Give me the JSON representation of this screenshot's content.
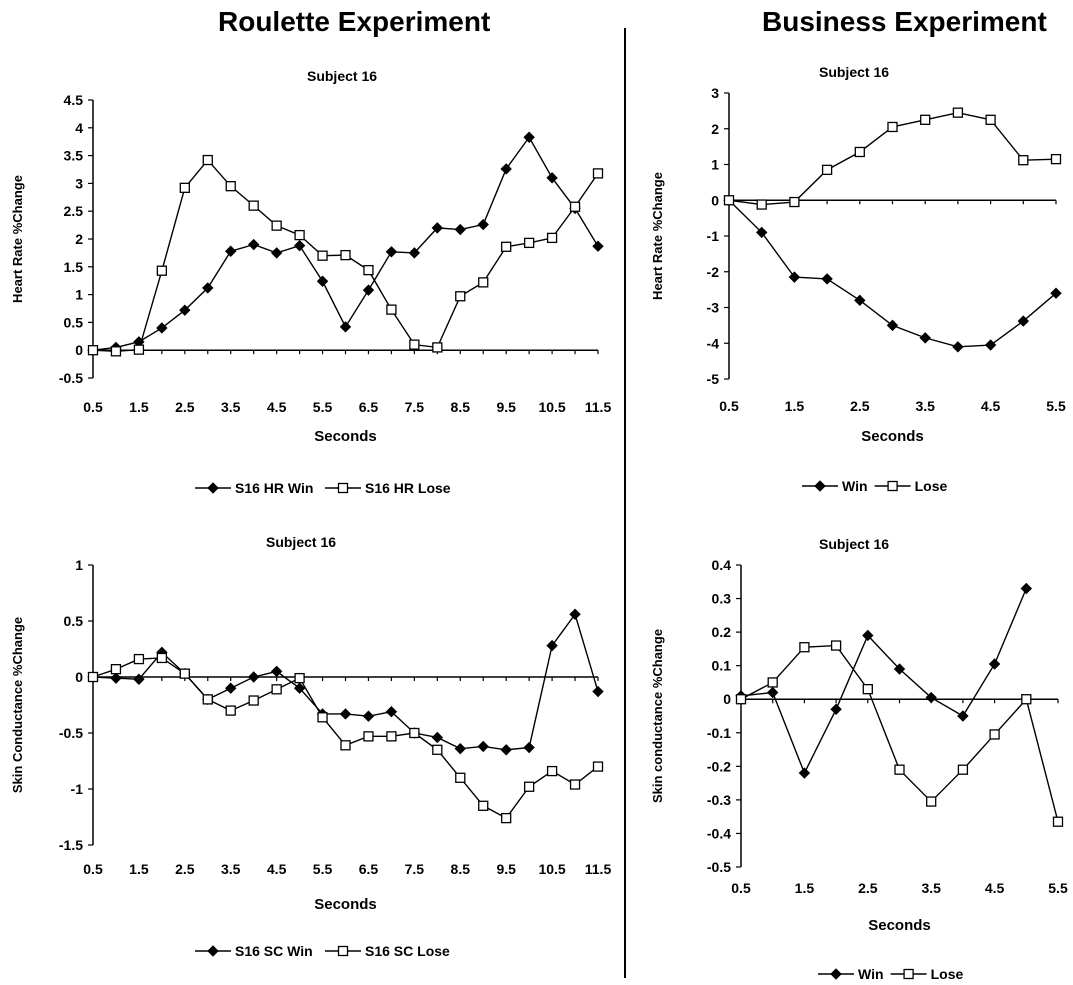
{
  "sections": {
    "left_title": "Roulette Experiment",
    "right_title": "Business Experiment"
  },
  "chart_data": [
    {
      "type": "line",
      "title": "Subject 16",
      "xlabel": "Seconds",
      "ylabel": "Heart Rate %Change",
      "categories": [
        "0.5",
        "1",
        "1.5",
        "2",
        "2.5",
        "3",
        "3.5",
        "4",
        "4.5",
        "5",
        "5.5",
        "6",
        "6.5",
        "7",
        "7.5",
        "8",
        "8.5",
        "9",
        "9.5",
        "10",
        "10.5",
        "11",
        "11.5"
      ],
      "tick_labels": [
        "0.5",
        "1.5",
        "2.5",
        "3.5",
        "4.5",
        "5.5",
        "6.5",
        "7.5",
        "8.5",
        "9.5",
        "10.5",
        "11.5"
      ],
      "ylim": [
        -0.5,
        4.5
      ],
      "yticks": [
        "4.5",
        "4",
        "3.5",
        "3",
        "2.5",
        "2",
        "1.5",
        "1",
        "0.5",
        "0",
        "-0.5"
      ],
      "legend_position": "bottom",
      "series": [
        {
          "name": "S16 HR Win",
          "marker": "diamond",
          "values": [
            0,
            0.05,
            0.15,
            0.4,
            0.72,
            1.12,
            1.78,
            1.9,
            1.75,
            1.88,
            1.24,
            0.42,
            1.08,
            1.77,
            1.75,
            2.2,
            2.17,
            2.26,
            3.26,
            3.83,
            3.1,
            2.55,
            1.87
          ]
        },
        {
          "name": "S16 HR Lose",
          "marker": "square",
          "values": [
            0,
            -0.02,
            0.01,
            1.43,
            2.92,
            3.42,
            2.95,
            2.6,
            2.24,
            2.07,
            1.7,
            1.71,
            1.44,
            0.73,
            0.1,
            0.05,
            0.97,
            1.22,
            1.86,
            1.93,
            2.02,
            2.58,
            3.18
          ]
        }
      ]
    },
    {
      "type": "line",
      "title": "Subject 16",
      "xlabel": "Seconds",
      "ylabel": "Heart Rate %Change",
      "categories": [
        "0.5",
        "1",
        "1.5",
        "2",
        "2.5",
        "3",
        "3.5",
        "4",
        "4.5",
        "5",
        "5.5"
      ],
      "tick_labels": [
        "0.5",
        "1.5",
        "2.5",
        "3.5",
        "4.5",
        "5.5"
      ],
      "ylim": [
        -5,
        3
      ],
      "yticks": [
        "3",
        "2",
        "1",
        "0",
        "-1",
        "-2",
        "-3",
        "-4",
        "-5"
      ],
      "legend_position": "bottom",
      "series": [
        {
          "name": "Win",
          "marker": "diamond",
          "values": [
            0,
            -0.9,
            -2.15,
            -2.2,
            -2.8,
            -3.5,
            -3.85,
            -4.1,
            -4.05,
            -3.38,
            -2.6
          ]
        },
        {
          "name": "Lose",
          "marker": "square",
          "values": [
            0,
            -0.12,
            -0.05,
            0.85,
            1.35,
            2.05,
            2.25,
            2.45,
            2.25,
            1.12,
            1.15
          ]
        }
      ]
    },
    {
      "type": "line",
      "title": "Subject 16",
      "xlabel": "Seconds",
      "ylabel": "Skin Conductance %Change",
      "categories": [
        "0.5",
        "1",
        "1.5",
        "2",
        "2.5",
        "3",
        "3.5",
        "4",
        "4.5",
        "5",
        "5.5",
        "6",
        "6.5",
        "7",
        "7.5",
        "8",
        "8.5",
        "9",
        "9.5",
        "10",
        "10.5",
        "11",
        "11.5"
      ],
      "tick_labels": [
        "0.5",
        "1.5",
        "2.5",
        "3.5",
        "4.5",
        "5.5",
        "6.5",
        "7.5",
        "8.5",
        "9.5",
        "10.5",
        "11.5"
      ],
      "ylim": [
        -1.5,
        1
      ],
      "yticks": [
        "1",
        "0.5",
        "0",
        "-0.5",
        "-1",
        "-1.5"
      ],
      "legend_position": "bottom",
      "series": [
        {
          "name": "S16 SC Win",
          "marker": "diamond",
          "values": [
            0,
            -0.01,
            -0.02,
            0.22,
            0.03,
            -0.2,
            -0.1,
            0.0,
            0.05,
            -0.1,
            -0.33,
            -0.33,
            -0.35,
            -0.31,
            -0.5,
            -0.54,
            -0.64,
            -0.62,
            -0.65,
            -0.63,
            0.28,
            0.56,
            -0.13
          ]
        },
        {
          "name": "S16 SC Lose",
          "marker": "square",
          "values": [
            0,
            0.07,
            0.16,
            0.17,
            0.03,
            -0.2,
            -0.3,
            -0.21,
            -0.11,
            -0.01,
            -0.36,
            -0.61,
            -0.53,
            -0.53,
            -0.5,
            -0.65,
            -0.9,
            -1.15,
            -1.26,
            -0.98,
            -0.84,
            -0.96,
            -0.8
          ]
        }
      ]
    },
    {
      "type": "line",
      "title": "Subject 16",
      "xlabel": "Seconds",
      "ylabel": "Skin conductance %Change",
      "categories": [
        "0.5",
        "1",
        "1.5",
        "2",
        "2.5",
        "3",
        "3.5",
        "4",
        "4.5",
        "5",
        "5.5"
      ],
      "tick_labels": [
        "0.5",
        "1.5",
        "2.5",
        "3.5",
        "4.5",
        "5.5"
      ],
      "ylim": [
        -0.5,
        0.4
      ],
      "yticks": [
        "0.4",
        "0.3",
        "0.2",
        "0.1",
        "0",
        "-0.1",
        "-0.2",
        "-0.3",
        "-0.4",
        "-0.5"
      ],
      "legend_position": "bottom",
      "series": [
        {
          "name": "Win",
          "marker": "diamond",
          "values": [
            0.01,
            0.02,
            -0.22,
            -0.03,
            0.19,
            0.09,
            0.005,
            -0.05,
            0.105,
            0.33,
            null
          ]
        },
        {
          "name": "Lose",
          "marker": "square",
          "values": [
            0,
            0.05,
            0.155,
            0.16,
            0.03,
            -0.21,
            -0.305,
            -0.21,
            -0.105,
            0,
            -0.365
          ]
        }
      ]
    }
  ]
}
